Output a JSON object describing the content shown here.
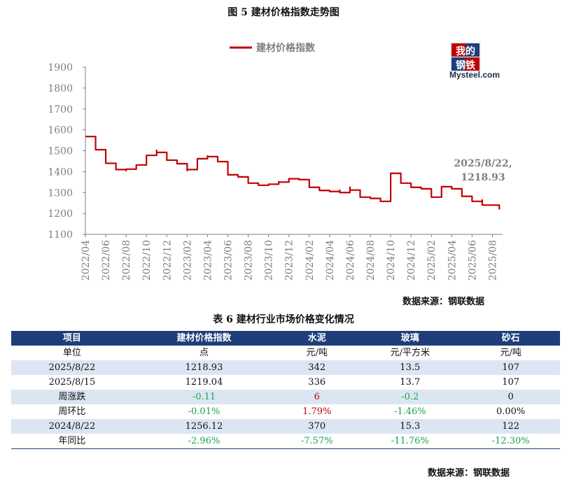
{
  "figure": {
    "title": "图 5  建材价格指数走势图"
  },
  "logo": {
    "line1": "我的",
    "line2": "钢铁",
    "brand": "Mysteel.com"
  },
  "chart_data": {
    "type": "line",
    "title": "",
    "xlabel": "",
    "ylabel": "",
    "ylim": [
      1100,
      1900
    ],
    "yticks": [
      1100,
      1200,
      1300,
      1400,
      1500,
      1600,
      1700,
      1800,
      1900
    ],
    "xticks": [
      "2022/04",
      "2022/06",
      "2022/08",
      "2022/10",
      "2022/12",
      "2023/02",
      "2023/04",
      "2023/06",
      "2023/08",
      "2023/10",
      "2023/12",
      "2024/02",
      "2024/04",
      "2024/06",
      "2024/08",
      "2024/10",
      "2024/12",
      "2025/02",
      "2025/04",
      "2025/06",
      "2025/08"
    ],
    "grid": false,
    "legend_position": "top-center",
    "color": "#c00000",
    "series": [
      {
        "name": "建材价格指数",
        "x": [
          "2022/04",
          "2022/05",
          "2022/05",
          "2022/06",
          "2022/06",
          "2022/07",
          "2022/08",
          "2022/08",
          "2022/09",
          "2022/10",
          "2022/10",
          "2022/11",
          "2022/11",
          "2022/12",
          "2022/12",
          "2023/01",
          "2023/02",
          "2023/02",
          "2023/03",
          "2023/03",
          "2023/04",
          "2023/04",
          "2023/05",
          "2023/06",
          "2023/06",
          "2023/07",
          "2023/08",
          "2023/09",
          "2023/10",
          "2023/11",
          "2023/11",
          "2023/12",
          "2024/01",
          "2024/02",
          "2024/02",
          "2024/03",
          "2024/04",
          "2024/04",
          "2024/05",
          "2024/05",
          "2024/06",
          "2024/06",
          "2024/07",
          "2024/08",
          "2024/09",
          "2024/09",
          "2024/10",
          "2024/10",
          "2024/11",
          "2024/11",
          "2024/12",
          "2024/12",
          "2025/01",
          "2025/02",
          "2025/02",
          "2025/03",
          "2025/03",
          "2025/04",
          "2025/05",
          "2025/05",
          "2025/06",
          "2025/06",
          "2025/07",
          "2025/07",
          "2025/08/22"
        ],
        "y": [
          1568,
          1568,
          1505,
          1470,
          1440,
          1410,
          1405,
          1412,
          1432,
          1473,
          1478,
          1502,
          1492,
          1462,
          1455,
          1438,
          1405,
          1410,
          1430,
          1462,
          1475,
          1472,
          1448,
          1410,
          1385,
          1375,
          1345,
          1335,
          1340,
          1352,
          1350,
          1366,
          1362,
          1338,
          1325,
          1310,
          1310,
          1305,
          1312,
          1300,
          1326,
          1312,
          1278,
          1272,
          1263,
          1258,
          1310,
          1392,
          1362,
          1345,
          1330,
          1325,
          1318,
          1300,
          1278,
          1282,
          1328,
          1318,
          1300,
          1282,
          1278,
          1258,
          1265,
          1240,
          1218.93
        ]
      }
    ],
    "annotation": {
      "line1": "2025/8/22,",
      "line2": "1218.93"
    }
  },
  "source1": "数据来源：钢联数据",
  "table": {
    "title": "表 6 建材行业市场价格变化情况",
    "headers": [
      "项目",
      "建材价格指数",
      "水泥",
      "玻璃",
      "砂石"
    ],
    "rows": [
      [
        "单位",
        "点",
        "元/吨",
        "元/平方米",
        "元/吨"
      ],
      [
        "2025/8/22",
        "1218.93",
        "342",
        "13.5",
        "107"
      ],
      [
        "2025/8/15",
        "1219.04",
        "336",
        "13.7",
        "107"
      ],
      [
        "周涨跌",
        "-0.11",
        "6",
        "-0.2",
        "0"
      ],
      [
        "周环比",
        "-0.01%",
        "1.79%",
        "-1.46%",
        "0.00%"
      ],
      [
        "2024/8/22",
        "1256.12",
        "370",
        "15.3",
        "122"
      ],
      [
        "年同比",
        "-2.96%",
        "-7.57%",
        "-11.76%",
        "-12.30%"
      ]
    ],
    "colors": {
      "header_bg": "#1f3d79",
      "stripe": "#dce6f3",
      "up": "#c00000",
      "down": "#1aa34a"
    }
  },
  "source2": "数据来源：钢联数据"
}
